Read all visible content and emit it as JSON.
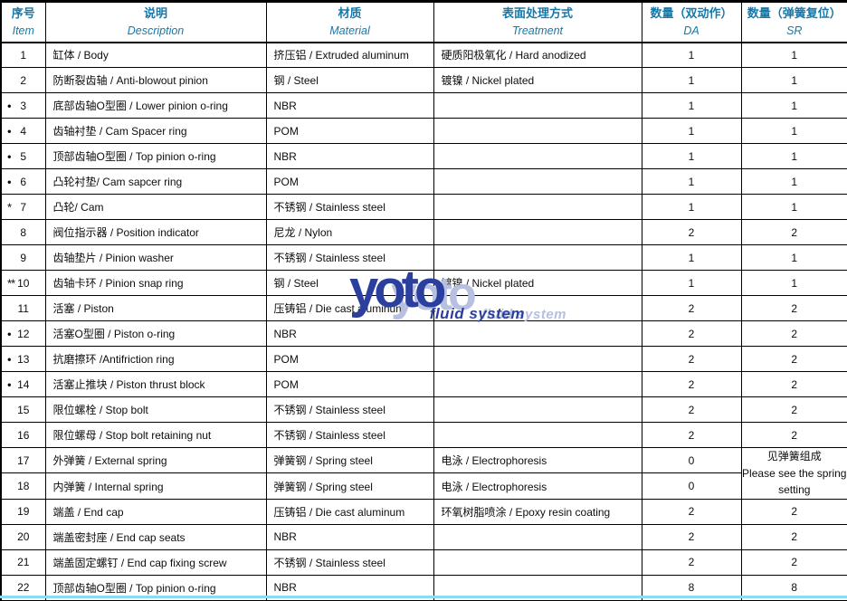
{
  "colors": {
    "header_text": "#1778a9",
    "border": "#000000",
    "watermark_blue": "#2b3f9e",
    "watermark_echo": "#b7c0e1",
    "bottom_edge_cyan": "#8edcef"
  },
  "watermark": {
    "logo": "yoto",
    "tagline": "fluid system"
  },
  "table": {
    "columns": [
      {
        "zh": "序号",
        "en": "Item"
      },
      {
        "zh": "说明",
        "en": "Description"
      },
      {
        "zh": "材质",
        "en": "Material"
      },
      {
        "zh": "表面处理方式",
        "en": "Treatment"
      },
      {
        "zh": "数量（双动作）",
        "en": "DA"
      },
      {
        "zh": "数量（弹簧复位）",
        "en": "SR"
      }
    ],
    "sr_note": {
      "lines": [
        "见弹簧组成",
        "Please see the spring",
        "setting"
      ]
    },
    "rows": [
      {
        "marker": "",
        "item": "1",
        "desc": "缸体 /  Body",
        "material": "挤压铝 / Extruded aluminum",
        "treatment": "硬质阳极氧化 / Hard anodized",
        "da": "1",
        "sr": "1"
      },
      {
        "marker": "",
        "item": "2",
        "desc": "防断裂齿轴 /  Anti-blowout pinion",
        "material": "钢 / Steel",
        "treatment": "镀镍 / Nickel plated",
        "da": "1",
        "sr": "1"
      },
      {
        "marker": "•",
        "item": "3",
        "desc": "底部齿轴O型圈 / Lower pinion o-ring",
        "material": "NBR",
        "treatment": "",
        "da": "1",
        "sr": "1"
      },
      {
        "marker": "•",
        "item": "4",
        "desc": "齿轴衬垫 /  Cam Spacer ring",
        "material": "POM",
        "treatment": "",
        "da": "1",
        "sr": "1"
      },
      {
        "marker": "•",
        "item": "5",
        "desc": "顶部齿轴O型圈 / Top pinion o-ring",
        "material": "NBR",
        "treatment": "",
        "da": "1",
        "sr": "1"
      },
      {
        "marker": "•",
        "item": "6",
        "desc": "凸轮衬垫/ Cam sapcer ring",
        "material": "POM",
        "treatment": "",
        "da": "1",
        "sr": "1"
      },
      {
        "marker": "*",
        "item": "7",
        "desc": "凸轮/ Cam",
        "material": "不锈钢 / Stainless steel",
        "treatment": "",
        "da": "1",
        "sr": "1"
      },
      {
        "marker": "",
        "item": "8",
        "desc": "阀位指示器 / Position indicator",
        "material": "尼龙 / Nylon",
        "treatment": "",
        "da": "2",
        "sr": "2"
      },
      {
        "marker": "",
        "item": "9",
        "desc": "齿轴垫片 / Pinion washer",
        "material": "不锈钢 / Stainless steel",
        "treatment": "",
        "da": "1",
        "sr": "1"
      },
      {
        "marker": "**",
        "item": "10",
        "desc": "齿轴卡环 /  Pinion snap ring",
        "material": "钢 / Steel",
        "treatment": "镀镍 / Nickel plated",
        "da": "1",
        "sr": "1"
      },
      {
        "marker": "",
        "item": "11",
        "desc": "活塞 /  Piston",
        "material": "压铸铝 / Die cast aluminum",
        "treatment": "",
        "da": "2",
        "sr": "2"
      },
      {
        "marker": "•",
        "item": "12",
        "desc": "活塞O型圈 / Piston o-ring",
        "material": "NBR",
        "treatment": "",
        "da": "2",
        "sr": "2"
      },
      {
        "marker": "•",
        "item": "13",
        "desc": "抗磨擦环 /Antifriction ring",
        "material": "POM",
        "treatment": "",
        "da": "2",
        "sr": "2"
      },
      {
        "marker": "•",
        "item": "14",
        "desc": "活塞止推块 / Piston thrust block",
        "material": "POM",
        "treatment": "",
        "da": "2",
        "sr": "2"
      },
      {
        "marker": "",
        "item": "15",
        "desc": "限位螺栓 /  Stop bolt",
        "material": "不锈钢 / Stainless steel",
        "treatment": "",
        "da": "2",
        "sr": "2"
      },
      {
        "marker": "",
        "item": "16",
        "desc": "限位螺母 / Stop bolt retaining nut",
        "material": "不锈钢 / Stainless steel",
        "treatment": "",
        "da": "2",
        "sr": "2"
      },
      {
        "marker": "",
        "item": "17",
        "desc": "外弹簧 / External spring",
        "material": "弹簧钢 / Spring steel",
        "treatment": "电泳 / Electrophoresis",
        "da": "0",
        "sr": "",
        "sr_merge_start": true
      },
      {
        "marker": "",
        "item": "18",
        "desc": "内弹簧 / Internal spring",
        "material": "弹簧钢 / Spring steel",
        "treatment": "电泳 / Electrophoresis",
        "da": "0",
        "sr": "",
        "sr_merged": true
      },
      {
        "marker": "",
        "item": "19",
        "desc": "端盖 / End cap",
        "material": "压铸铝 / Die cast aluminum",
        "treatment": "环氧树脂喷涂 / Epoxy resin coating",
        "da": "2",
        "sr": "2"
      },
      {
        "marker": "",
        "item": "20",
        "desc": "端盖密封座 / End cap seats",
        "material": "NBR",
        "treatment": "",
        "da": "2",
        "sr": "2"
      },
      {
        "marker": "",
        "item": "21",
        "desc": "端盖固定螺钉 / End cap fixing screw",
        "material": "不锈钢 / Stainless steel",
        "treatment": "",
        "da": "2",
        "sr": "2"
      },
      {
        "marker": "",
        "item": "22",
        "desc": "顶部齿轴O型圈 / Top pinion o-ring",
        "material": "NBR",
        "treatment": "",
        "da": "8",
        "sr": "8"
      }
    ]
  }
}
